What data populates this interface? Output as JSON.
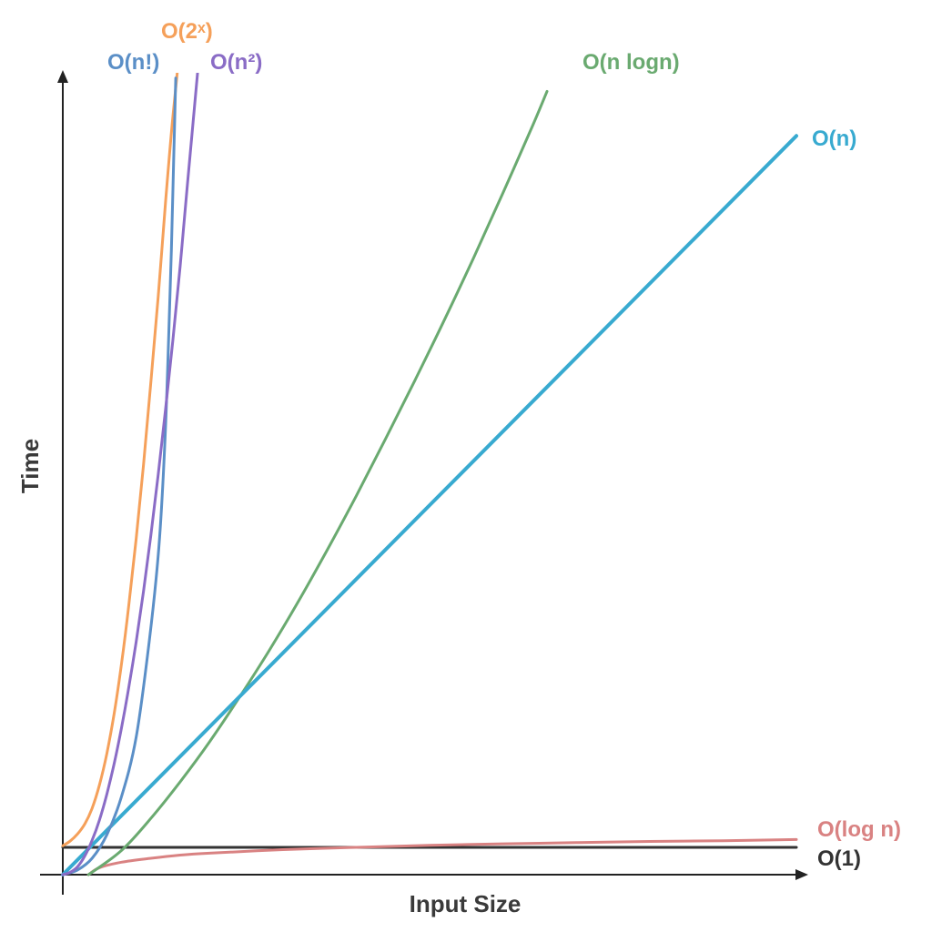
{
  "chart_data": {
    "type": "line",
    "title": "",
    "xlabel": "Input Size",
    "ylabel": "Time",
    "xlim": [
      0,
      100
    ],
    "ylim": [
      0,
      100
    ],
    "grid": false,
    "legend": "none",
    "series": [
      {
        "name": "O(n!)",
        "color": "#5b8fc7",
        "points": [
          [
            0,
            0
          ],
          [
            2,
            0.6
          ],
          [
            4,
            2.1
          ],
          [
            6,
            5.1
          ],
          [
            8,
            10
          ],
          [
            10,
            17.6
          ],
          [
            11.8,
            30
          ],
          [
            13.1,
            42
          ],
          [
            13.9,
            55
          ],
          [
            14.4,
            68
          ],
          [
            14.8,
            80
          ],
          [
            15.1,
            91
          ],
          [
            15.4,
            102
          ]
        ]
      },
      {
        "name": "O(2ˣ)",
        "color": "#f5a05a",
        "points": [
          [
            0,
            3.7
          ],
          [
            1,
            4.3
          ],
          [
            2,
            5.2
          ],
          [
            3,
            6.5
          ],
          [
            4,
            8.5
          ],
          [
            5,
            11.5
          ],
          [
            6,
            15.5
          ],
          [
            7,
            20.6
          ],
          [
            8,
            27
          ],
          [
            9,
            34.5
          ],
          [
            10,
            43
          ],
          [
            11,
            52.5
          ],
          [
            12,
            63
          ],
          [
            13,
            74
          ],
          [
            14,
            86
          ],
          [
            15,
            97
          ],
          [
            16.5,
            111
          ]
        ]
      },
      {
        "name": "O(n²)",
        "color": "#8a6cc6",
        "points": [
          [
            0,
            0
          ],
          [
            1,
            0.3
          ],
          [
            2,
            1.0
          ],
          [
            3,
            2.4
          ],
          [
            4,
            4.4
          ],
          [
            5,
            7.0
          ],
          [
            6,
            10.3
          ],
          [
            7,
            14.2
          ],
          [
            8,
            18.8
          ],
          [
            9,
            24.0
          ],
          [
            10,
            29.8
          ],
          [
            11,
            36.3
          ],
          [
            12,
            43.4
          ],
          [
            13,
            51.2
          ],
          [
            14,
            59.5
          ],
          [
            15,
            68.4
          ],
          [
            16,
            78
          ],
          [
            17,
            88.5
          ],
          [
            18.5,
            104
          ]
        ]
      },
      {
        "name": "O(n logn)",
        "color": "#6aaa70",
        "points": [
          [
            3.5,
            0
          ],
          [
            8,
            3.1
          ],
          [
            12,
            7.2
          ],
          [
            16,
            11.9
          ],
          [
            20,
            17
          ],
          [
            24,
            22.6
          ],
          [
            28,
            28.5
          ],
          [
            32,
            34.8
          ],
          [
            36,
            41.5
          ],
          [
            40,
            48.5
          ],
          [
            44,
            55.8
          ],
          [
            48,
            63.3
          ],
          [
            52,
            71.0
          ],
          [
            56,
            79.0
          ],
          [
            60,
            87.3
          ],
          [
            64,
            95.8
          ],
          [
            66,
            100.3
          ]
        ]
      },
      {
        "name": "O(n)",
        "color": "#38aad0",
        "points": [
          [
            0,
            0
          ],
          [
            100,
            94.6
          ]
        ]
      },
      {
        "name": "O(log n)",
        "color": "#d98282",
        "points": [
          [
            3.5,
            0
          ],
          [
            5,
            0.9
          ],
          [
            8,
            1.6
          ],
          [
            12,
            2.1
          ],
          [
            16,
            2.5
          ],
          [
            20,
            2.75
          ],
          [
            30,
            3.2
          ],
          [
            40,
            3.5
          ],
          [
            50,
            3.75
          ],
          [
            60,
            3.95
          ],
          [
            70,
            4.1
          ],
          [
            80,
            4.25
          ],
          [
            90,
            4.35
          ],
          [
            100,
            4.5
          ]
        ]
      },
      {
        "name": "O(1)",
        "color": "#333333",
        "points": [
          [
            0,
            3.5
          ],
          [
            100,
            3.5
          ]
        ]
      }
    ]
  }
}
